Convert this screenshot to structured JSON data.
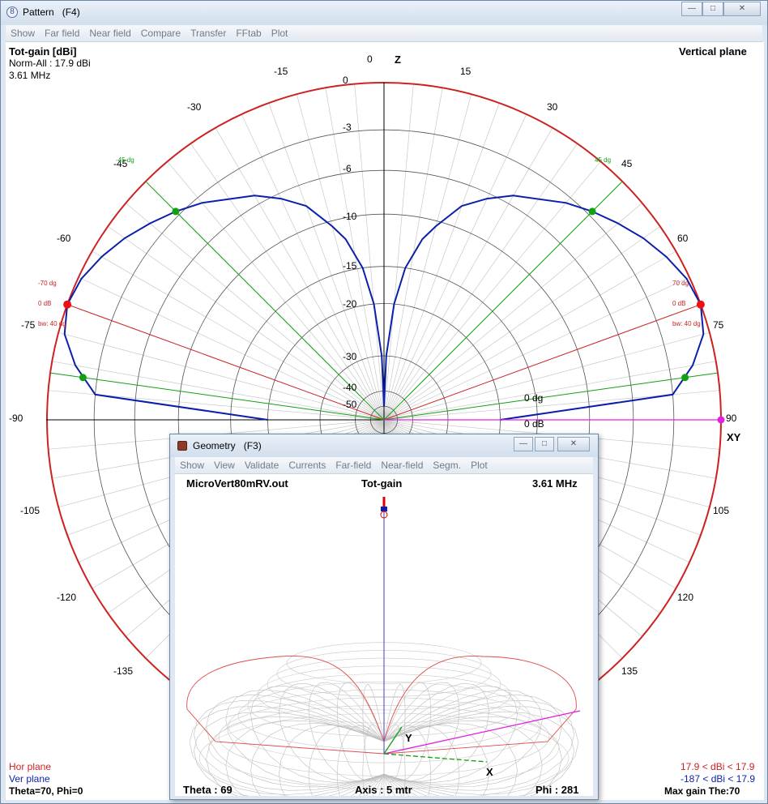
{
  "window": {
    "title": "Pattern",
    "shortcut": "(F4)",
    "icon_name": "pattern-icon"
  },
  "menu": [
    "Show",
    "Far field",
    "Near field",
    "Compare",
    "Transfer",
    "FFtab",
    "Plot"
  ],
  "plot": {
    "quantity": "Tot-gain [dBi]",
    "norm": "Norm-All : 17.9 dBi",
    "frequency": "3.61 MHz",
    "plane": "Vertical plane",
    "axis_z": "Z",
    "axis_xy": "XY",
    "angle_labels": [
      "0",
      "15",
      "30",
      "45",
      "60",
      "75",
      "90",
      "105",
      "120",
      "135",
      "-15",
      "-30",
      "-45",
      "-60",
      "-75",
      "-90",
      "-105",
      "-120",
      "-135"
    ],
    "ring_labels": [
      "0",
      "-3",
      "-6",
      "-10",
      "-15",
      "-20",
      "-30",
      "-40",
      "-50"
    ],
    "zero_dg": "0 dg",
    "zero_db": "0 dB",
    "left_markers": {
      "bw_edge": "-45 dg",
      "peak_angle": "-70 dg",
      "peak_db": "0 dB",
      "bw": "bw: 40 dg"
    },
    "right_markers": {
      "bw_edge": "45 dg",
      "peak_angle": "70 dg",
      "peak_db": "0 dB",
      "bw": "bw: 40 dg"
    },
    "legend": {
      "hor_plane": "Hor plane",
      "ver_plane": "Ver plane",
      "cursor": "Theta=70, Phi=0",
      "hor_range": "17.9 < dBi < 17.9",
      "ver_range": "-187 < dBi < 17.9",
      "max_gain": "Max gain The:70"
    },
    "colors": {
      "ver_trace": "#0a1faa",
      "outer": "#cc2222",
      "marker_green": "#11a011",
      "marker_red": "#ee1111",
      "cursor": "#e020e0"
    }
  },
  "chart_data": {
    "type": "polar",
    "title": "Tot-gain [dBi]",
    "unit": "dB (normalized)",
    "ring_db": [
      0,
      -3,
      -6,
      -10,
      -15,
      -20,
      -30,
      -40,
      -50
    ],
    "vertical_plane": {
      "theta_deg": [
        0,
        2,
        5,
        8,
        12,
        15,
        20,
        25,
        30,
        40,
        45,
        50,
        55,
        60,
        65,
        70,
        75,
        80,
        85,
        90
      ],
      "gain_db": [
        -50,
        -30,
        -20,
        -15,
        -12,
        -10.5,
        -8,
        -6.5,
        -5.3,
        -3.5,
        -2.7,
        -2,
        -1.3,
        -0.7,
        -0.2,
        0,
        -0.4,
        -1.5,
        -3,
        -20
      ]
    },
    "max_theta_deg": 70,
    "beamwidth_deg": 40
  },
  "geometry": {
    "title": "Geometry",
    "shortcut": "(F3)",
    "menu": [
      "Show",
      "View",
      "Validate",
      "Currents",
      "Far-field",
      "Near-field",
      "Segm.",
      "Plot"
    ],
    "file": "MicroVert80mRV.out",
    "quantity": "Tot-gain",
    "frequency": "3.61 MHz",
    "theta": "Theta : 69",
    "axis": "Axis : 5 mtr",
    "phi": "Phi : 281",
    "axis_x": "X",
    "axis_y": "Y"
  }
}
